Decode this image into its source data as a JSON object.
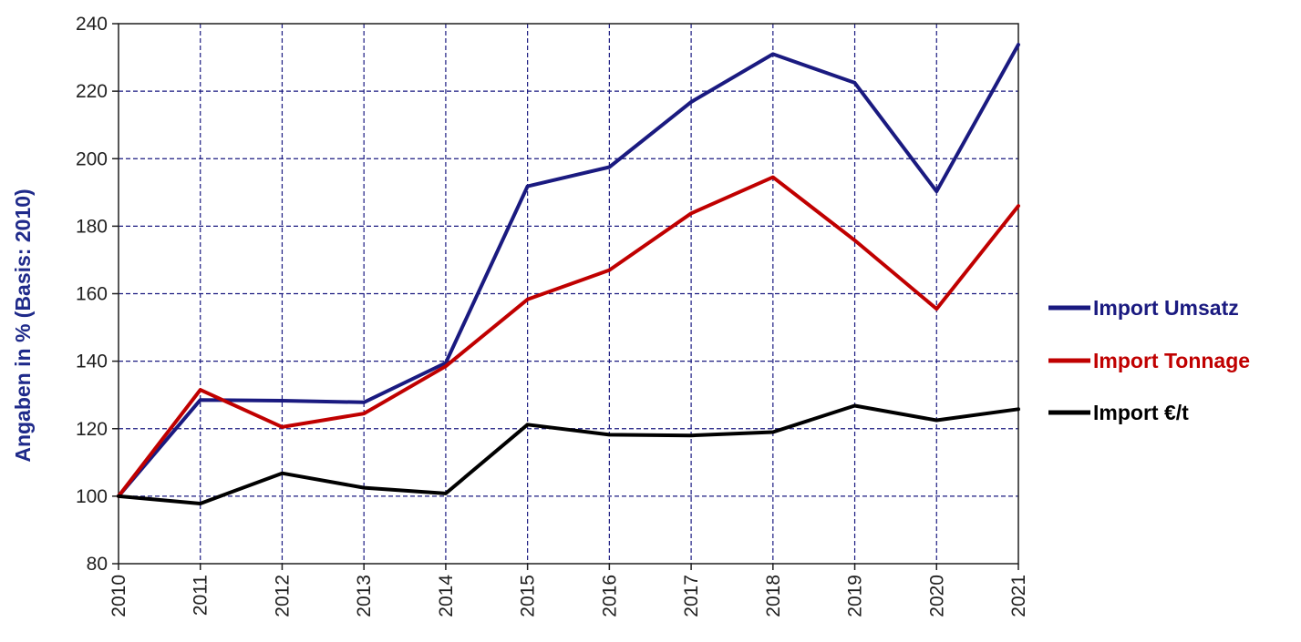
{
  "chart_data": {
    "type": "line",
    "title": "",
    "xlabel": "",
    "ylabel": "Angaben in % (Basis: 2010)",
    "x": [
      "2010",
      "2011",
      "2012",
      "2013",
      "2014",
      "2015",
      "2016",
      "2017",
      "2018",
      "2019",
      "2020",
      "2021"
    ],
    "ylim": [
      80,
      240
    ],
    "yticks": [
      80,
      100,
      120,
      140,
      160,
      180,
      200,
      220,
      240
    ],
    "grid": true,
    "legend_position": "right",
    "series": [
      {
        "name": "Import Umsatz",
        "color": "#1a1a80",
        "values": [
          100,
          128.5,
          128.3,
          127.8,
          139.5,
          191.8,
          197.5,
          216.8,
          231.0,
          222.5,
          190.3,
          233.8
        ]
      },
      {
        "name": "Import Tonnage",
        "color": "#c00000",
        "values": [
          100,
          131.5,
          120.5,
          124.5,
          138.5,
          158.3,
          167.0,
          183.8,
          194.5,
          175.8,
          155.5,
          186.0
        ]
      },
      {
        "name": "Import €/t",
        "color": "#000000",
        "values": [
          100,
          97.8,
          106.8,
          102.5,
          100.8,
          121.2,
          118.2,
          118.0,
          119.0,
          126.8,
          122.5,
          125.8
        ]
      }
    ]
  }
}
